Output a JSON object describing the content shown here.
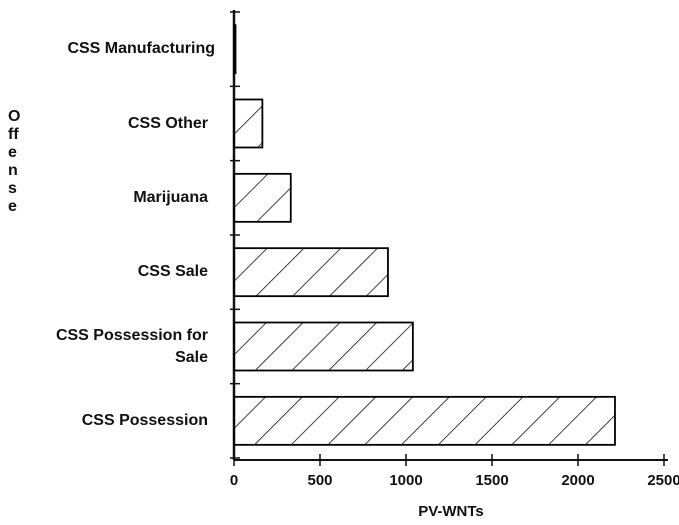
{
  "chart_data": {
    "type": "barh",
    "categories": [
      "CSS Manufacturing",
      "CSS Other",
      "Marijuana",
      "CSS Sale",
      "CSS Possession for Sale",
      "CSS Possession"
    ],
    "values": [
      5,
      165,
      330,
      895,
      1040,
      2215
    ],
    "xlim": [
      0,
      2500
    ],
    "xticks": [
      0,
      500,
      1000,
      1500,
      2000,
      2500
    ],
    "xlabel": "PV-WNTs",
    "ylabel": "Offense",
    "color": "#000000"
  }
}
